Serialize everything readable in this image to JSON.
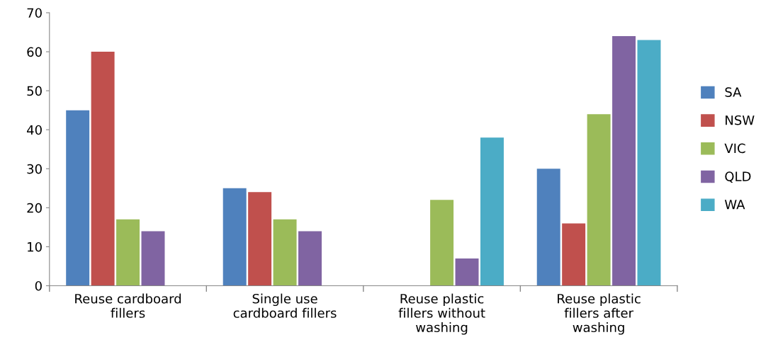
{
  "chart_data": {
    "type": "bar",
    "categories": [
      "Reuse cardboard\nfillers",
      "Single use\ncardboard fillers",
      "Reuse plastic\nfillers without\nwashing",
      "Reuse plastic\nfillers after\nwashing"
    ],
    "series": [
      {
        "name": "SA",
        "color": "#4f81bd",
        "values": [
          45,
          25,
          null,
          30
        ]
      },
      {
        "name": "NSW",
        "color": "#c0504d",
        "values": [
          60,
          24,
          null,
          16
        ]
      },
      {
        "name": "VIC",
        "color": "#9bbb59",
        "values": [
          17,
          17,
          22,
          44
        ]
      },
      {
        "name": "QLD",
        "color": "#8064a2",
        "values": [
          14,
          14,
          7,
          64
        ]
      },
      {
        "name": "WA",
        "color": "#4bacc6",
        "values": [
          null,
          null,
          38,
          63
        ]
      }
    ],
    "ylim": [
      0,
      70
    ],
    "yticks": [
      0,
      10,
      20,
      30,
      40,
      50,
      60,
      70
    ],
    "grid": false,
    "legend": "right"
  }
}
